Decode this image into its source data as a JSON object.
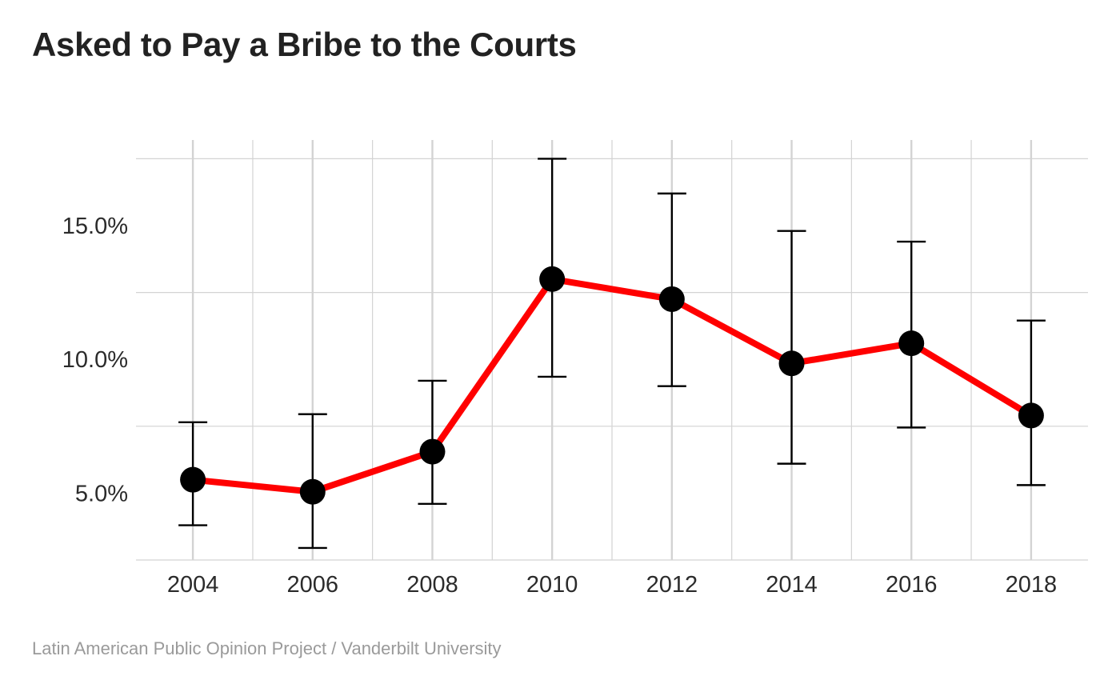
{
  "chart_data": {
    "type": "line",
    "title": "Asked to Pay a Bribe to the Courts",
    "xlabel": "",
    "ylabel": "",
    "x_ticks": [
      "2004",
      "2006",
      "2008",
      "2010",
      "2012",
      "2014",
      "2016",
      "2018"
    ],
    "y_ticks": [
      {
        "value": 5.0,
        "label": "5.0%"
      },
      {
        "value": 10.0,
        "label": "10.0%"
      },
      {
        "value": 15.0,
        "label": "15.0%"
      }
    ],
    "xlim": [
      2003.05,
      2018.95
    ],
    "ylim": [
      2.5,
      18.2
    ],
    "grid": true,
    "legend": "none",
    "series": [
      {
        "x": [
          2004,
          2006,
          2008,
          2010,
          2012,
          2014,
          2016,
          2018
        ],
        "values": [
          5.5,
          5.05,
          6.55,
          13.0,
          12.25,
          9.85,
          10.6,
          7.9
        ],
        "error_lower": [
          3.8,
          2.95,
          4.6,
          9.35,
          9.0,
          6.1,
          7.45,
          5.3
        ],
        "error_upper": [
          7.65,
          7.95,
          9.2,
          17.5,
          16.2,
          14.8,
          14.4,
          11.45
        ]
      }
    ],
    "colors": {
      "line": "#ff0000",
      "point": "#000000",
      "error_bar": "#000000",
      "grid": "#d3d3d3"
    }
  },
  "source": "Latin American Public Opinion Project / Vanderbilt University"
}
